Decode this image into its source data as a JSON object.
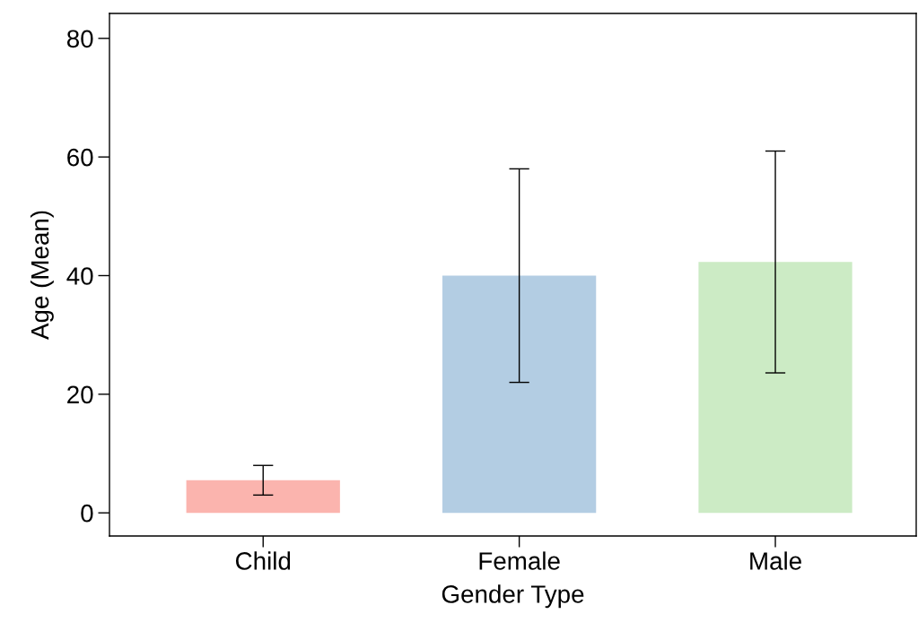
{
  "chart_data": {
    "type": "bar",
    "xlabel": "Gender Type",
    "ylabel": "Age (Mean)",
    "categories": [
      "Child",
      "Female",
      "Male"
    ],
    "values": [
      5.5,
      40,
      42.3
    ],
    "colors": [
      "#fbb4ae",
      "#b3cde3",
      "#ccebc5"
    ],
    "errors": [
      2.5,
      18,
      18.7
    ],
    "ylim": [
      -3.9,
      84.2
    ],
    "yticks": [
      0,
      20,
      40,
      60,
      80
    ],
    "grid": false,
    "legend": false
  }
}
